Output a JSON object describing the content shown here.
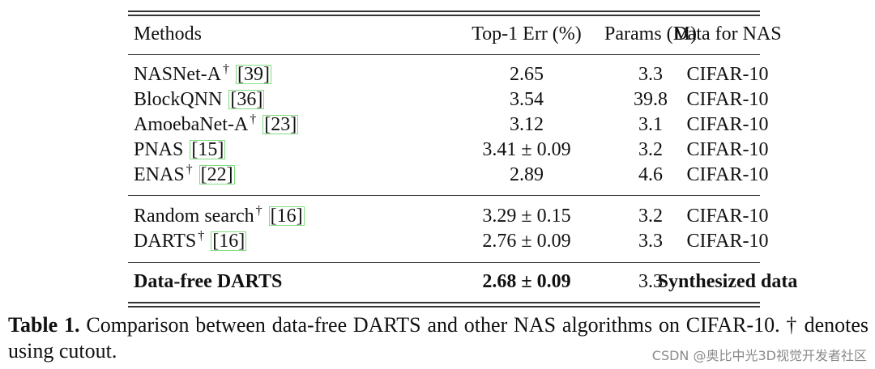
{
  "table": {
    "header": [
      "Methods",
      "Top-1 Err (%)",
      "Params (M)",
      "Data for NAS"
    ],
    "groups": [
      [
        {
          "method": "NASNet-A",
          "mark": "†",
          "ref": "[39]",
          "err": "2.65",
          "params": "3.3",
          "data": "CIFAR-10"
        },
        {
          "method": "BlockQNN",
          "ref": "[36]",
          "err": "3.54",
          "params": "39.8",
          "data": "CIFAR-10"
        },
        {
          "method": "AmoebaNet-A",
          "mark": "†",
          "ref": "[23]",
          "err": "3.12",
          "params": "3.1",
          "data": "CIFAR-10"
        },
        {
          "method": "PNAS",
          "ref": "[15]",
          "err": "3.41 ± 0.09",
          "params": "3.2",
          "data": "CIFAR-10"
        },
        {
          "method": "ENAS",
          "mark": "†",
          "ref": "[22]",
          "err": "2.89",
          "params": "4.6",
          "data": "CIFAR-10"
        }
      ],
      [
        {
          "method": "Random search",
          "mark": "†",
          "ref": "[16]",
          "err": "3.29 ± 0.15",
          "params": "3.2",
          "data": "CIFAR-10"
        },
        {
          "method": "DARTS",
          "mark": "†",
          "ref": "[16]",
          "err": "2.76 ± 0.09",
          "params": "3.3",
          "data": "CIFAR-10"
        }
      ],
      [
        {
          "method": "Data-free DARTS",
          "err": "2.68 ± 0.09",
          "params": "3.3",
          "data": "Synthesized data"
        }
      ]
    ]
  },
  "caption": {
    "label": "Table 1.",
    "text": "Comparison between data-free DARTS and other NAS algorithms on CIFAR-10. † denotes using cutout."
  },
  "watermark": "CSDN @奥比中光3D视觉开发者社区"
}
